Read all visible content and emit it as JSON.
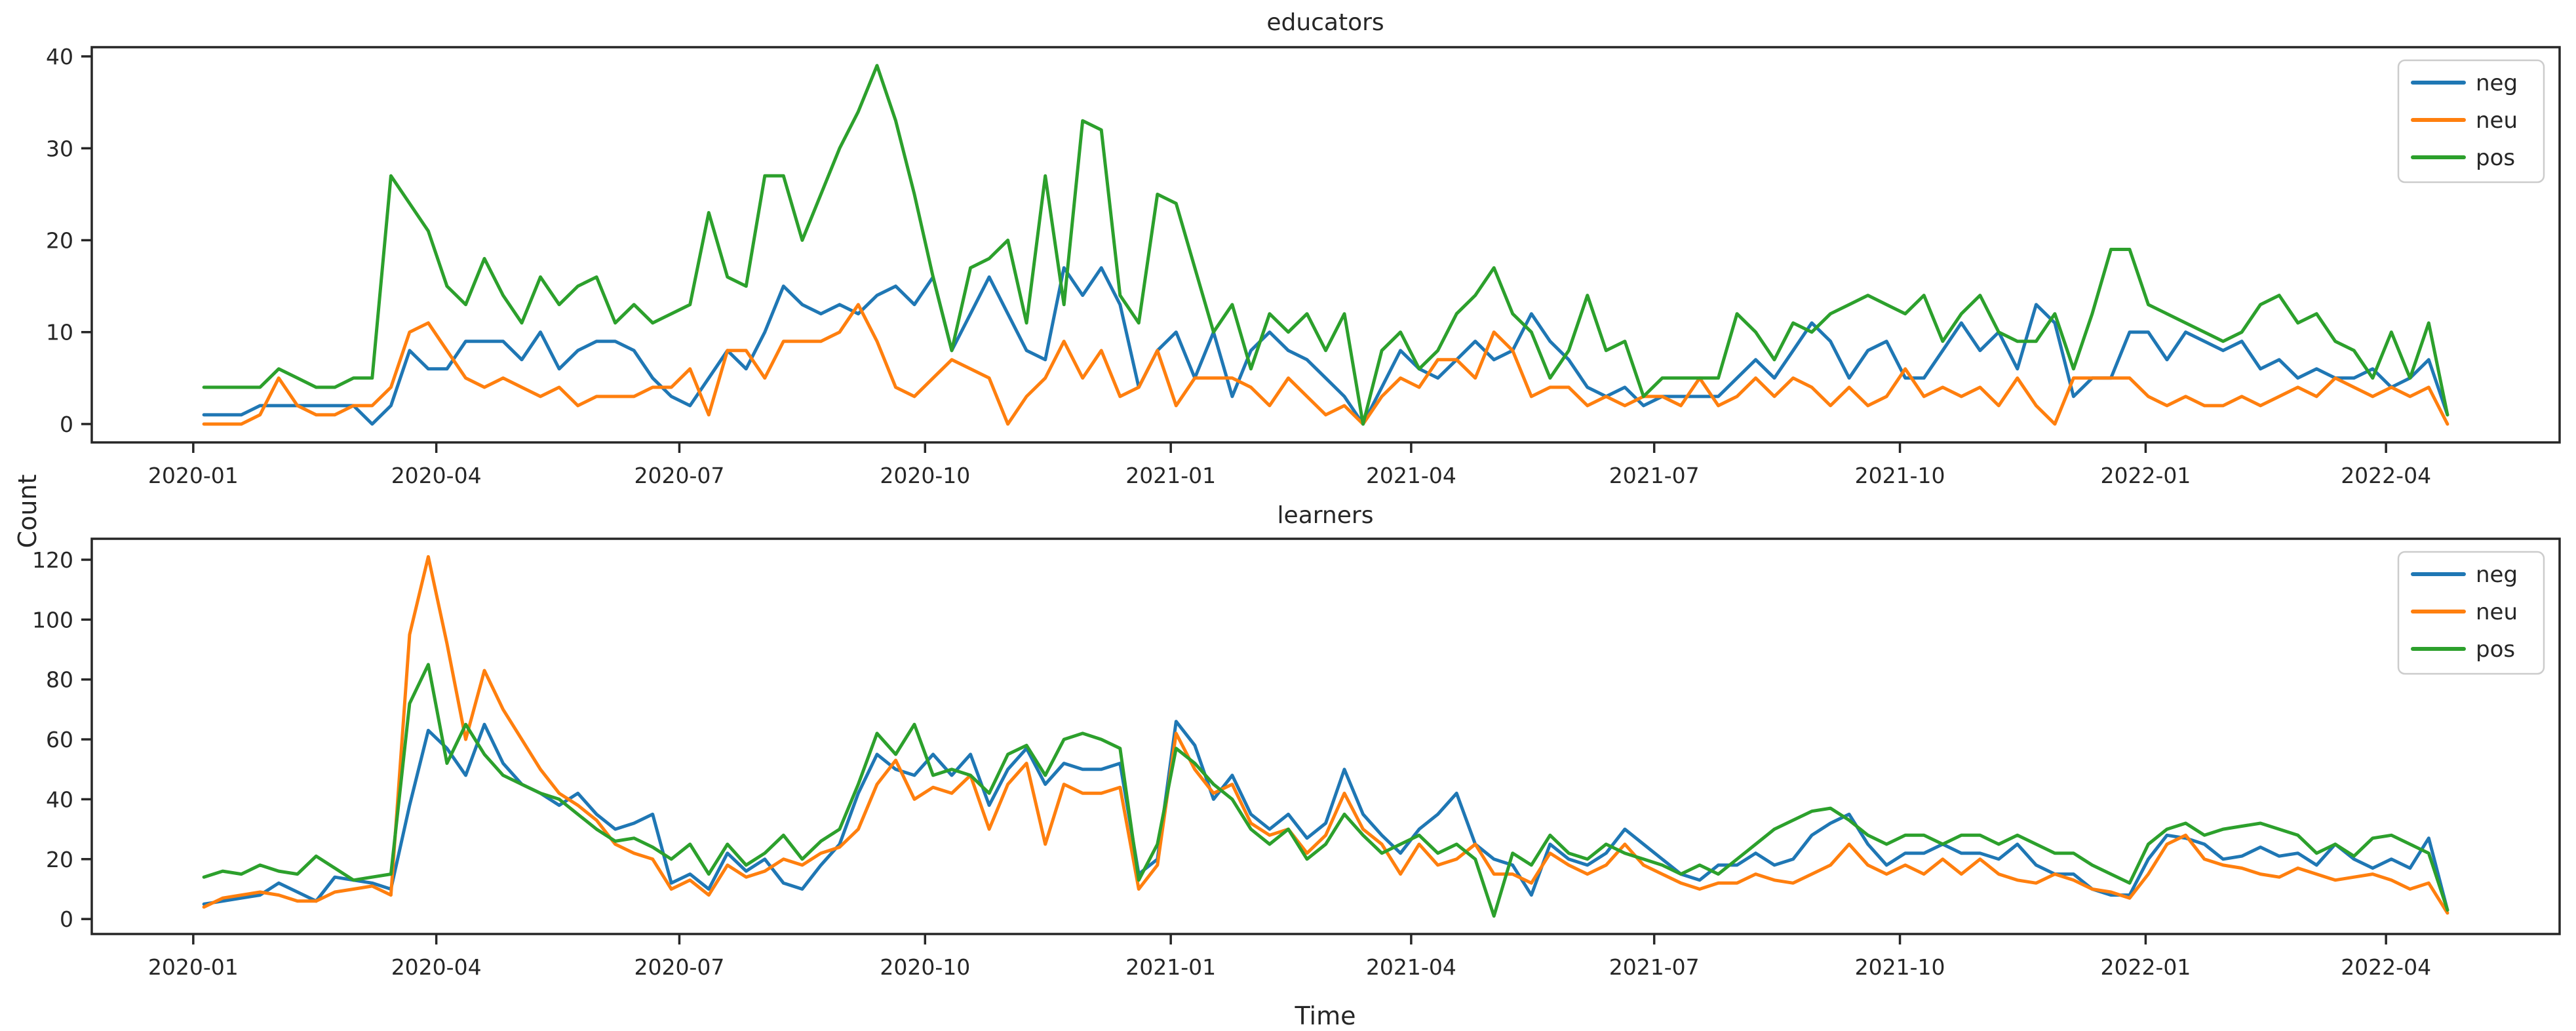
{
  "figure": {
    "background": "#ffffff",
    "shared_ylabel": "Count",
    "shared_xlabel": "Time",
    "text_color": "#262626",
    "spine_color": "#262626"
  },
  "legend": {
    "position": "upper right",
    "entries": [
      {
        "label": "neg",
        "color": "#1f77b4"
      },
      {
        "label": "neu",
        "color": "#ff7f0e"
      },
      {
        "label": "pos",
        "color": "#2ca02c"
      }
    ]
  },
  "x_weeks": [
    "2020-01-05",
    "2020-01-12",
    "2020-01-19",
    "2020-01-26",
    "2020-02-02",
    "2020-02-09",
    "2020-02-16",
    "2020-02-23",
    "2020-03-01",
    "2020-03-08",
    "2020-03-15",
    "2020-03-22",
    "2020-03-29",
    "2020-04-05",
    "2020-04-12",
    "2020-04-19",
    "2020-04-26",
    "2020-05-03",
    "2020-05-10",
    "2020-05-17",
    "2020-05-24",
    "2020-05-31",
    "2020-06-07",
    "2020-06-14",
    "2020-06-21",
    "2020-06-28",
    "2020-07-05",
    "2020-07-12",
    "2020-07-19",
    "2020-07-26",
    "2020-08-02",
    "2020-08-09",
    "2020-08-16",
    "2020-08-23",
    "2020-08-30",
    "2020-09-06",
    "2020-09-13",
    "2020-09-20",
    "2020-09-27",
    "2020-10-04",
    "2020-10-11",
    "2020-10-18",
    "2020-10-25",
    "2020-11-01",
    "2020-11-08",
    "2020-11-15",
    "2020-11-22",
    "2020-11-29",
    "2020-12-06",
    "2020-12-13",
    "2020-12-20",
    "2020-12-27",
    "2021-01-03",
    "2021-01-10",
    "2021-01-17",
    "2021-01-24",
    "2021-01-31",
    "2021-02-07",
    "2021-02-14",
    "2021-02-21",
    "2021-02-28",
    "2021-03-07",
    "2021-03-14",
    "2021-03-21",
    "2021-03-28",
    "2021-04-04",
    "2021-04-11",
    "2021-04-18",
    "2021-04-25",
    "2021-05-02",
    "2021-05-09",
    "2021-05-16",
    "2021-05-23",
    "2021-05-30",
    "2021-06-06",
    "2021-06-13",
    "2021-06-20",
    "2021-06-27",
    "2021-07-04",
    "2021-07-11",
    "2021-07-18",
    "2021-07-25",
    "2021-08-01",
    "2021-08-08",
    "2021-08-15",
    "2021-08-22",
    "2021-08-29",
    "2021-09-05",
    "2021-09-12",
    "2021-09-19",
    "2021-09-26",
    "2021-10-03",
    "2021-10-10",
    "2021-10-17",
    "2021-10-24",
    "2021-10-31",
    "2021-11-07",
    "2021-11-14",
    "2021-11-21",
    "2021-11-28",
    "2021-12-05",
    "2021-12-12",
    "2021-12-19",
    "2021-12-26",
    "2022-01-02",
    "2022-01-09",
    "2022-01-16",
    "2022-01-23",
    "2022-01-30",
    "2022-02-06",
    "2022-02-13",
    "2022-02-20",
    "2022-02-27",
    "2022-03-06",
    "2022-03-13",
    "2022-03-20",
    "2022-03-27",
    "2022-04-03",
    "2022-04-10",
    "2022-04-17",
    "2022-04-24"
  ],
  "chart_data": [
    {
      "type": "line",
      "title": "educators",
      "grid": false,
      "legend_position": "upper right",
      "ylim": [
        -2,
        41
      ],
      "y_ticks": [
        0,
        10,
        20,
        30,
        40
      ],
      "x_ticks": [
        {
          "label": "2020-01",
          "date": "2020-01-01"
        },
        {
          "label": "2020-04",
          "date": "2020-04-01"
        },
        {
          "label": "2020-07",
          "date": "2020-07-01"
        },
        {
          "label": "2020-10",
          "date": "2020-10-01"
        },
        {
          "label": "2021-01",
          "date": "2021-01-01"
        },
        {
          "label": "2021-04",
          "date": "2021-04-01"
        },
        {
          "label": "2021-07",
          "date": "2021-07-01"
        },
        {
          "label": "2021-10",
          "date": "2021-10-01"
        },
        {
          "label": "2022-01",
          "date": "2022-01-01"
        },
        {
          "label": "2022-04",
          "date": "2022-04-01"
        }
      ],
      "series": [
        {
          "name": "neg",
          "color": "#1f77b4",
          "values": [
            1,
            1,
            1,
            2,
            2,
            2,
            2,
            2,
            2,
            0,
            2,
            8,
            6,
            6,
            9,
            9,
            9,
            7,
            10,
            6,
            8,
            9,
            9,
            8,
            5,
            3,
            2,
            5,
            8,
            6,
            10,
            15,
            13,
            12,
            13,
            12,
            14,
            15,
            13,
            16,
            8,
            12,
            16,
            12,
            8,
            7,
            17,
            14,
            17,
            13,
            4,
            8,
            10,
            5,
            10,
            3,
            8,
            10,
            8,
            7,
            5,
            3,
            0,
            4,
            8,
            6,
            5,
            7,
            9,
            7,
            8,
            12,
            9,
            7,
            4,
            3,
            4,
            2,
            3,
            3,
            3,
            3,
            5,
            7,
            5,
            8,
            11,
            9,
            5,
            8,
            9,
            5,
            5,
            8,
            11,
            8,
            10,
            6,
            13,
            11,
            3,
            5,
            5,
            10,
            10,
            7,
            10,
            9,
            8,
            9,
            6,
            7,
            5,
            6,
            5,
            5,
            6,
            4,
            5,
            7,
            1
          ]
        },
        {
          "name": "neu",
          "color": "#ff7f0e",
          "values": [
            0,
            0,
            0,
            1,
            5,
            2,
            1,
            1,
            2,
            2,
            4,
            10,
            11,
            8,
            5,
            4,
            5,
            4,
            3,
            4,
            2,
            3,
            3,
            3,
            4,
            4,
            6,
            1,
            8,
            8,
            5,
            9,
            9,
            9,
            10,
            13,
            9,
            4,
            3,
            5,
            7,
            6,
            5,
            0,
            3,
            5,
            9,
            5,
            8,
            3,
            4,
            8,
            2,
            5,
            5,
            5,
            4,
            2,
            5,
            3,
            1,
            2,
            0,
            3,
            5,
            4,
            7,
            7,
            5,
            10,
            8,
            3,
            4,
            4,
            2,
            3,
            2,
            3,
            3,
            2,
            5,
            2,
            3,
            5,
            3,
            5,
            4,
            2,
            4,
            2,
            3,
            6,
            3,
            4,
            3,
            4,
            2,
            5,
            2,
            0,
            5,
            5,
            5,
            5,
            3,
            2,
            3,
            2,
            2,
            3,
            2,
            3,
            4,
            3,
            5,
            4,
            3,
            4,
            3,
            4,
            0
          ]
        },
        {
          "name": "pos",
          "color": "#2ca02c",
          "values": [
            4,
            4,
            4,
            4,
            6,
            5,
            4,
            4,
            5,
            5,
            27,
            24,
            21,
            15,
            13,
            18,
            14,
            11,
            16,
            13,
            15,
            16,
            11,
            13,
            11,
            12,
            13,
            23,
            16,
            15,
            27,
            27,
            20,
            25,
            30,
            34,
            39,
            33,
            25,
            16,
            8,
            17,
            18,
            20,
            11,
            27,
            13,
            33,
            32,
            14,
            11,
            25,
            24,
            17,
            10,
            13,
            6,
            12,
            10,
            12,
            8,
            12,
            0,
            8,
            10,
            6,
            8,
            12,
            14,
            17,
            12,
            10,
            5,
            8,
            14,
            8,
            9,
            3,
            5,
            5,
            5,
            5,
            12,
            10,
            7,
            11,
            10,
            12,
            13,
            14,
            13,
            12,
            14,
            9,
            12,
            14,
            10,
            9,
            9,
            12,
            6,
            12,
            19,
            19,
            13,
            12,
            11,
            10,
            9,
            10,
            13,
            14,
            11,
            12,
            9,
            8,
            5,
            10,
            5,
            11,
            1
          ]
        }
      ]
    },
    {
      "type": "line",
      "title": "learners",
      "grid": false,
      "legend_position": "upper right",
      "ylim": [
        -5,
        127
      ],
      "y_ticks": [
        0,
        20,
        40,
        60,
        80,
        100,
        120
      ],
      "x_ticks": [
        {
          "label": "2020-01",
          "date": "2020-01-01"
        },
        {
          "label": "2020-04",
          "date": "2020-04-01"
        },
        {
          "label": "2020-07",
          "date": "2020-07-01"
        },
        {
          "label": "2020-10",
          "date": "2020-10-01"
        },
        {
          "label": "2021-01",
          "date": "2021-01-01"
        },
        {
          "label": "2021-04",
          "date": "2021-04-01"
        },
        {
          "label": "2021-07",
          "date": "2021-07-01"
        },
        {
          "label": "2021-10",
          "date": "2021-10-01"
        },
        {
          "label": "2022-01",
          "date": "2022-01-01"
        },
        {
          "label": "2022-04",
          "date": "2022-04-01"
        }
      ],
      "series": [
        {
          "name": "neg",
          "color": "#1f77b4",
          "values": [
            5,
            6,
            7,
            8,
            12,
            9,
            6,
            14,
            13,
            12,
            10,
            38,
            63,
            57,
            48,
            65,
            52,
            45,
            42,
            38,
            42,
            35,
            30,
            32,
            35,
            12,
            15,
            10,
            22,
            16,
            20,
            12,
            10,
            18,
            25,
            42,
            55,
            50,
            48,
            55,
            48,
            55,
            38,
            50,
            57,
            45,
            52,
            50,
            50,
            52,
            15,
            20,
            66,
            58,
            40,
            48,
            35,
            30,
            35,
            27,
            32,
            50,
            35,
            28,
            22,
            30,
            35,
            42,
            25,
            20,
            18,
            8,
            25,
            20,
            18,
            22,
            30,
            25,
            20,
            15,
            13,
            18,
            18,
            22,
            18,
            20,
            28,
            32,
            35,
            25,
            18,
            22,
            22,
            25,
            22,
            22,
            20,
            25,
            18,
            15,
            15,
            10,
            8,
            8,
            20,
            28,
            27,
            25,
            20,
            21,
            24,
            21,
            22,
            18,
            25,
            20,
            17,
            20,
            17,
            27,
            3
          ]
        },
        {
          "name": "neu",
          "color": "#ff7f0e",
          "values": [
            4,
            7,
            8,
            9,
            8,
            6,
            6,
            9,
            10,
            11,
            8,
            95,
            121,
            92,
            60,
            83,
            70,
            60,
            50,
            42,
            38,
            33,
            25,
            22,
            20,
            10,
            13,
            8,
            18,
            14,
            16,
            20,
            18,
            22,
            24,
            30,
            45,
            53,
            40,
            44,
            42,
            48,
            30,
            45,
            52,
            25,
            45,
            42,
            42,
            44,
            10,
            18,
            62,
            50,
            42,
            45,
            32,
            28,
            30,
            22,
            28,
            42,
            30,
            25,
            15,
            25,
            18,
            20,
            25,
            15,
            15,
            12,
            22,
            18,
            15,
            18,
            25,
            18,
            15,
            12,
            10,
            12,
            12,
            15,
            13,
            12,
            15,
            18,
            25,
            18,
            15,
            18,
            15,
            20,
            15,
            20,
            15,
            13,
            12,
            15,
            13,
            10,
            9,
            7,
            15,
            25,
            28,
            20,
            18,
            17,
            15,
            14,
            17,
            15,
            13,
            14,
            15,
            13,
            10,
            12,
            2
          ]
        },
        {
          "name": "pos",
          "color": "#2ca02c",
          "values": [
            14,
            16,
            15,
            18,
            16,
            15,
            21,
            17,
            13,
            14,
            15,
            72,
            85,
            52,
            65,
            55,
            48,
            45,
            42,
            40,
            35,
            30,
            26,
            27,
            24,
            20,
            25,
            15,
            25,
            18,
            22,
            28,
            20,
            26,
            30,
            45,
            62,
            55,
            65,
            48,
            50,
            48,
            42,
            55,
            58,
            48,
            60,
            62,
            60,
            57,
            13,
            25,
            57,
            52,
            45,
            40,
            30,
            25,
            30,
            20,
            25,
            35,
            28,
            22,
            25,
            28,
            22,
            25,
            20,
            1,
            22,
            18,
            28,
            22,
            20,
            25,
            22,
            20,
            18,
            15,
            18,
            15,
            20,
            25,
            30,
            33,
            36,
            37,
            33,
            28,
            25,
            28,
            28,
            25,
            28,
            28,
            25,
            28,
            25,
            22,
            22,
            18,
            15,
            12,
            25,
            30,
            32,
            28,
            30,
            31,
            32,
            30,
            28,
            22,
            25,
            21,
            27,
            28,
            25,
            22,
            3
          ]
        }
      ]
    }
  ]
}
